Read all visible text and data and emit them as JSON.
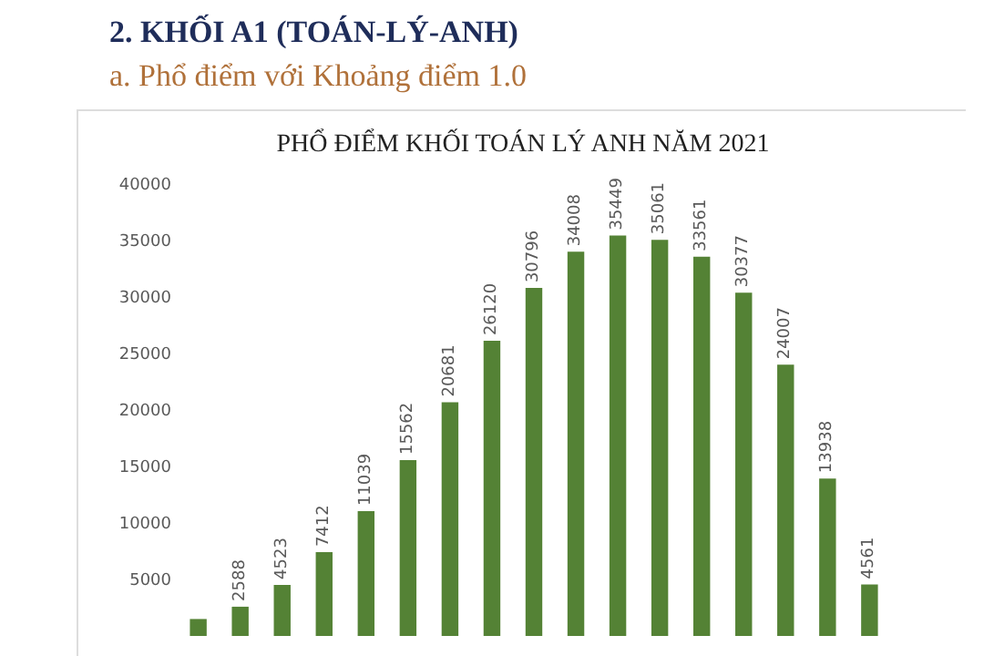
{
  "chart_data": {
    "type": "bar",
    "title": "PHỔ ĐIỂM KHỐI TOÁN LÝ ANH NĂM 2021",
    "annotations": [
      "2.  KHỐI A1 (TOÁN-LÝ-ANH)",
      "a.  Phổ điểm với Khoảng điểm 1.0"
    ],
    "categories": [
      null,
      null,
      null,
      null,
      null,
      null,
      null,
      null,
      null,
      null,
      null,
      null,
      null,
      null,
      null,
      null,
      null
    ],
    "values": [
      1500,
      2588,
      4523,
      7412,
      11039,
      15562,
      20681,
      26120,
      30796,
      34008,
      35449,
      35061,
      33561,
      30377,
      24007,
      13938,
      4561
    ],
    "value_labels": [
      null,
      "2588",
      "4523",
      "7412",
      "11039",
      "15562",
      "20681",
      "26120",
      "30796",
      "34008",
      "35449",
      "35061",
      "33561",
      "30377",
      "24007",
      "13938",
      "4561"
    ],
    "color": "#548235",
    "ylim": [
      0,
      40000
    ],
    "yticks": [
      5000,
      10000,
      15000,
      20000,
      25000,
      30000,
      35000,
      40000
    ],
    "grid": false
  }
}
